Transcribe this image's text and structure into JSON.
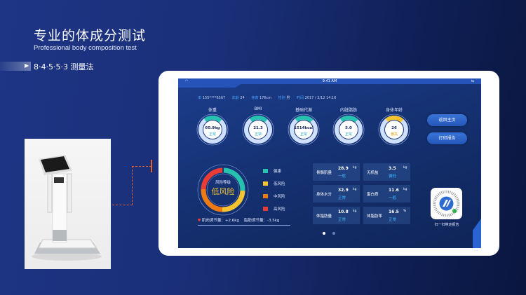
{
  "slide": {
    "title": "专业的体成分测试",
    "subtitle": "Professional body composition test",
    "method": "8·4·5·5·3 测量法",
    "accent": "#e0612b"
  },
  "status_bar": {
    "time": "9:41 AM",
    "wifi_icon": "wifi-icon",
    "usb_icon": "usb-icon"
  },
  "info": {
    "id_label": "ID",
    "id": "155****6567",
    "age_label": "年龄",
    "age": "24",
    "height_label": "身高",
    "height": "176cm",
    "gender_label": "性别",
    "gender": "男",
    "time_label": "时间",
    "time": "2017 / 3/12 14:16"
  },
  "gauges": [
    {
      "label": "体重",
      "value": "60.9kg",
      "status": "正常",
      "color": "#27c1b0"
    },
    {
      "label": "BMI",
      "value": "21.3",
      "status": "正常",
      "color": "#27c1b0"
    },
    {
      "label": "基础代谢",
      "value": "1514kcal",
      "status": "正常",
      "color": "#27c1b0"
    },
    {
      "label": "内脏脂肪",
      "value": "5.0",
      "status": "正常",
      "color": "#27c1b0"
    },
    {
      "label": "身体年龄",
      "value": "26",
      "status": "偏高",
      "color": "#f6c431"
    }
  ],
  "buttons": {
    "home": "返回主页",
    "print": "打印报告"
  },
  "risk": {
    "title": "风险等级",
    "level": "低风险",
    "muscle_label": "肌肉调节量：",
    "muscle": "+2.6kg",
    "fat_label": "脂肪调节量：",
    "fat": "-3.5kg"
  },
  "legend": [
    {
      "label": "健康",
      "color": "#27c1b0"
    },
    {
      "label": "低风险",
      "color": "#f6c431"
    },
    {
      "label": "中风险",
      "color": "#f07a12"
    },
    {
      "label": "高风险",
      "color": "#ea3c36"
    }
  ],
  "cards": [
    {
      "name": "骨骼肌量",
      "value": "28.9",
      "unit": "kg",
      "status": "一般"
    },
    {
      "name": "无机盐",
      "value": "3.5",
      "unit": "kg",
      "status": "偏低"
    },
    {
      "name": "身体水分",
      "value": "32.9",
      "unit": "kg",
      "status": "正常"
    },
    {
      "name": "蛋白质",
      "value": "11.6",
      "unit": "kg",
      "status": "一般"
    },
    {
      "name": "体脂肪量",
      "value": "10.8",
      "unit": "kg",
      "status": "正常"
    },
    {
      "name": "体脂肪率",
      "value": "16.5",
      "unit": "%",
      "status": "正常"
    }
  ],
  "qr": {
    "caption": "扫一扫带走报告"
  },
  "pager": {
    "pages": 2,
    "current": 1
  }
}
